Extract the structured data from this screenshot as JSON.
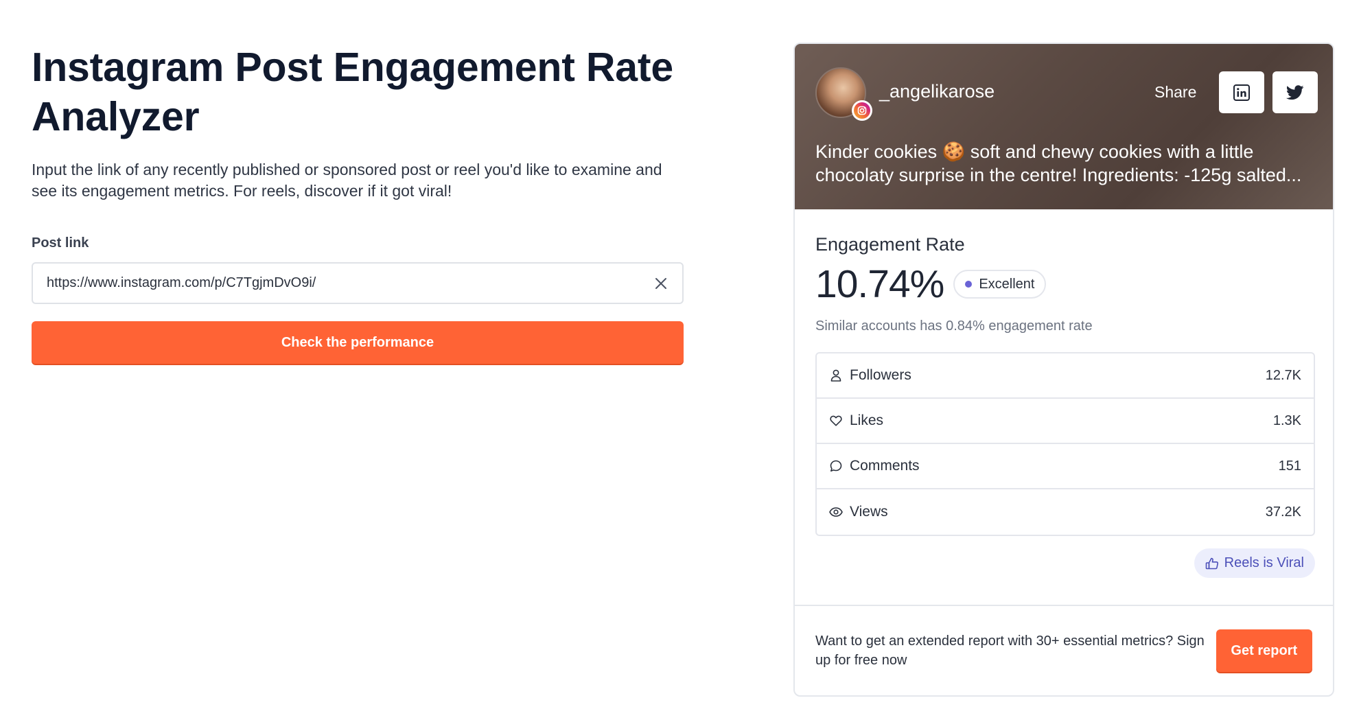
{
  "left": {
    "title": "Instagram Post Engagement Rate Analyzer",
    "description": "Input the link of any recently published or sponsored post or reel you'd like to examine and see its engagement metrics. For reels, discover if it got viral!",
    "field_label": "Post link",
    "input_value": "https://www.instagram.com/p/C7TgjmDvO9i/",
    "clear_icon": "close-icon",
    "button_label": "Check the performance"
  },
  "card": {
    "username": "_angelikarose",
    "share_label": "Share",
    "caption": "Kinder cookies 🍪 soft and chewy cookies with a little chocolaty surprise in the centre! Ingredients: -125g salted...",
    "engagement_label": "Engagement Rate",
    "engagement_value": "10.74%",
    "badge": "Excellent",
    "similar": "Similar accounts has 0.84% engagement rate",
    "metrics": [
      {
        "label": "Followers",
        "value": "12.7K",
        "icon": "user-icon"
      },
      {
        "label": "Likes",
        "value": "1.3K",
        "icon": "heart-icon"
      },
      {
        "label": "Comments",
        "value": "151",
        "icon": "comment-icon"
      },
      {
        "label": "Views",
        "value": "37.2K",
        "icon": "eye-icon"
      }
    ],
    "viral_label": "Reels is Viral",
    "footer_text": "Want to get an extended report with 30+ essential metrics? Sign up for free now",
    "report_button": "Get report"
  },
  "colors": {
    "accent": "#ff6335",
    "badge_dot": "#6a63d6",
    "viral_bg": "#eceefc",
    "viral_text": "#4b4fb8"
  }
}
